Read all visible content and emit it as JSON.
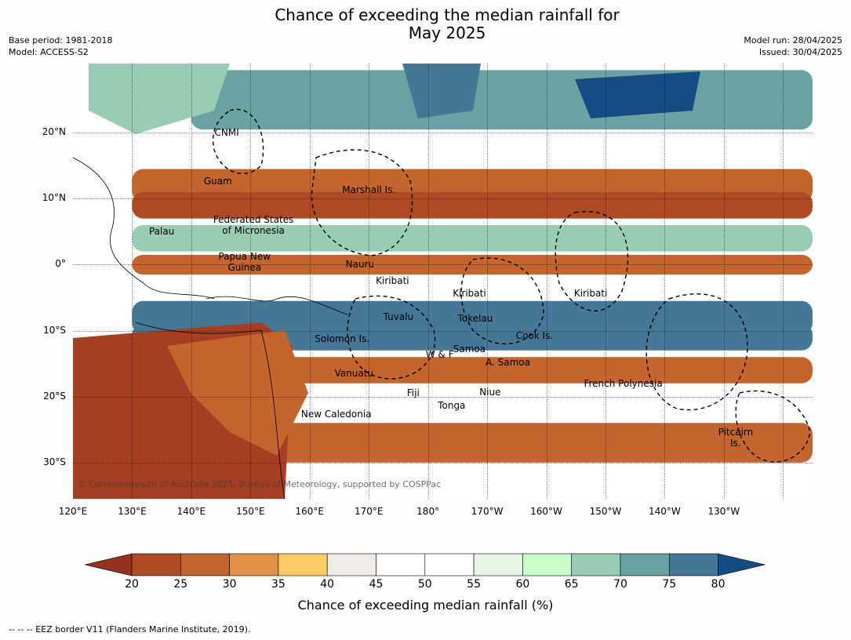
{
  "title": {
    "line1": "Chance of exceeding the median rainfall for",
    "line2": "May 2025"
  },
  "meta_left": {
    "base_period": "Base period: 1981-2018",
    "model": "Model: ACCESS-S2"
  },
  "meta_right": {
    "model_run": "Model run: 28/04/2025",
    "issued": "Issued: 30/04/2025"
  },
  "map": {
    "regions": [
      "CNMI",
      "Guam",
      "Marshall Is.",
      "Federated States\nof Micronesia",
      "Palau",
      "Papua New\nGuinea",
      "Nauru",
      "Kiribati",
      "Kiribati",
      "Kiribati",
      "Tuvalu",
      "Tokelau",
      "Cook Is.",
      "Solomon Is.",
      "Samoa",
      "W & F",
      "A. Samoa",
      "Vanuatu",
      "Fiji",
      "Niue",
      "French Polynesia",
      "Tonga",
      "New Caledonia",
      "Pitcairn\nIs."
    ],
    "copyright": "© Commonwealth of Australia 2025, Bureau of Meteorology, supported by COSPPac",
    "lon_ticks": [
      "120°E",
      "130°E",
      "140°E",
      "150°E",
      "160°E",
      "170°E",
      "180°",
      "170°W",
      "160°W",
      "150°W",
      "140°W",
      "130°W"
    ],
    "lat_ticks": [
      "20°N",
      "10°N",
      "0°",
      "10°S",
      "20°S",
      "30°S"
    ],
    "band_levels": {
      "lat_25N": 0.72,
      "lat_12N": 0.28,
      "lat_9N": 0.22,
      "lat_4N": 0.7,
      "lat_0": 0.3,
      "lat_8S": 0.78,
      "lat_11S": 0.76,
      "lat_16S": 0.26,
      "lat_20S": 0.52,
      "lat_27S": 0.26
    }
  },
  "colorbar": {
    "ticks": [
      "20",
      "25",
      "30",
      "35",
      "40",
      "45",
      "50",
      "55",
      "60",
      "65",
      "70",
      "75",
      "80"
    ],
    "colors": [
      "#93331f",
      "#b04a25",
      "#c4642f",
      "#e09345",
      "#fccb65",
      "#edece7",
      "#ffffff",
      "#ffffff",
      "#e6f5e6",
      "#c8fcc8",
      "#99ccb4",
      "#6aa2a2",
      "#467796",
      "#154c84"
    ],
    "title": "Chance of exceeding median rainfall (%)"
  },
  "footer": "-- -- -- EEZ border V11 (Flanders Marine Institute, 2019)."
}
